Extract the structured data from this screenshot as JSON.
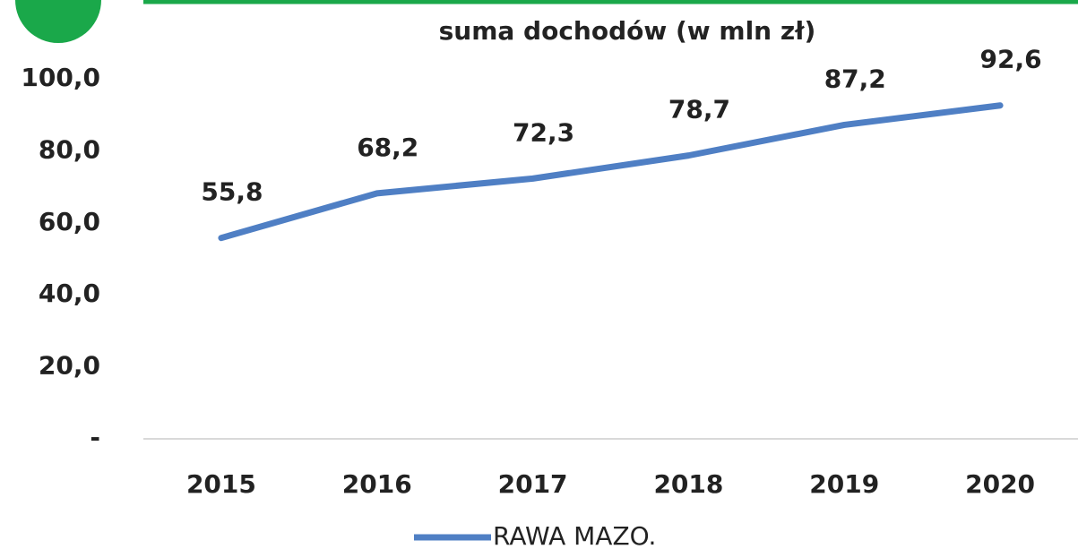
{
  "chart_data": {
    "type": "line",
    "title": "suma dochodów (w mln zł)",
    "categories": [
      "2015",
      "2016",
      "2017",
      "2018",
      "2019",
      "2020"
    ],
    "series": [
      {
        "name": "RAWA MAZO.",
        "color": "#4f7fc4",
        "values": [
          55.8,
          68.2,
          72.3,
          78.7,
          87.2,
          92.6
        ],
        "value_labels": [
          "55,8",
          "68,2",
          "72,3",
          "78,7",
          "87,2",
          "92,6"
        ]
      }
    ],
    "ylim": [
      0,
      100
    ],
    "yticks": [
      {
        "value": 0,
        "label": "-"
      },
      {
        "value": 20,
        "label": "20,0"
      },
      {
        "value": 40,
        "label": "40,0"
      },
      {
        "value": 60,
        "label": "60,0"
      },
      {
        "value": 80,
        "label": "80,0"
      },
      {
        "value": 100,
        "label": "100,0"
      }
    ],
    "legend": "bottom"
  }
}
